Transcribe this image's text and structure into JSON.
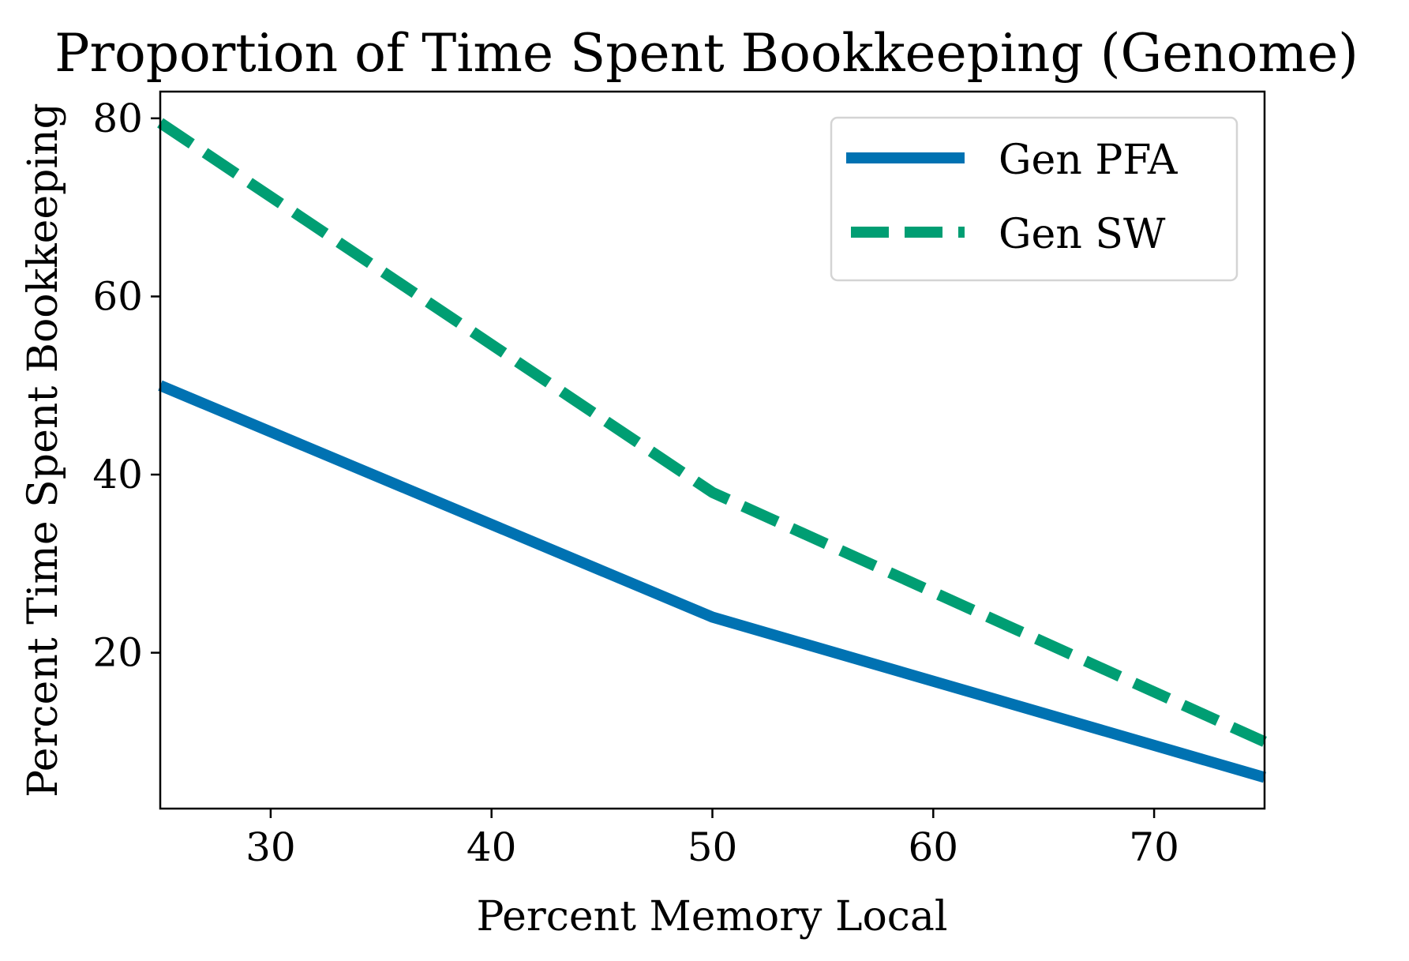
{
  "chart_data": {
    "type": "line",
    "title": "Proportion of Time Spent Bookkeeping (Genome)",
    "xlabel": "Percent Memory Local",
    "ylabel": "Percent Time Spent Bookkeeping",
    "xlim": [
      25,
      75
    ],
    "ylim": [
      2.5,
      83
    ],
    "xticks": [
      30,
      40,
      50,
      60,
      70
    ],
    "yticks": [
      20,
      40,
      60,
      80
    ],
    "grid": false,
    "legend_position": "top-right",
    "x": [
      25,
      50,
      75
    ],
    "series": [
      {
        "name": "Gen PFA",
        "values": [
          50,
          24,
          6
        ],
        "color": "#0072b2",
        "style": "solid"
      },
      {
        "name": "Gen SW",
        "values": [
          79.5,
          38,
          10
        ],
        "color": "#009e73",
        "style": "dashed"
      }
    ]
  }
}
